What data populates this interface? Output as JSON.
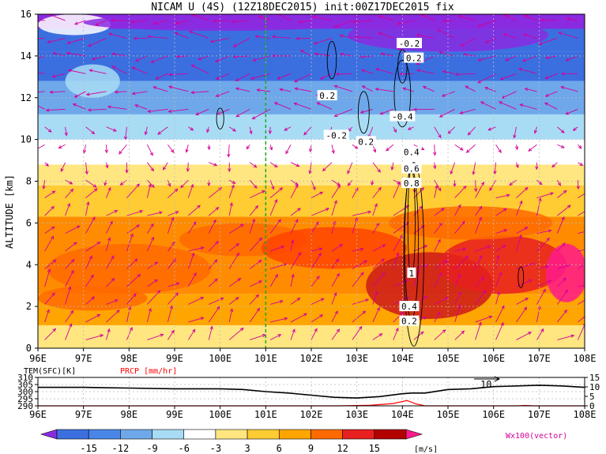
{
  "title": "NICAM U (4S) (12Z18DEC2015) init:00Z17DEC2015 fix",
  "chart_data": [
    {
      "type": "heatmap",
      "panel": "main",
      "x_ticks": [
        "96E",
        "97E",
        "98E",
        "99E",
        "100E",
        "101E",
        "102E",
        "103E",
        "104E",
        "105E",
        "106E",
        "107E",
        "108E"
      ],
      "xlim": [
        96,
        108
      ],
      "ylabel": "ALTITUDE [km]",
      "y_ticks": [
        "0",
        "2",
        "4",
        "6",
        "8",
        "10",
        "12",
        "14",
        "16"
      ],
      "ylim": [
        0,
        16
      ],
      "grid": true,
      "reference_line_lon": 101,
      "contour_labels": [
        "-0.2",
        "0.2",
        "0.2",
        "-0.2",
        "0.2",
        "-0.4",
        "0.4",
        "0.6",
        "0.8",
        "1",
        "0.4",
        "0.2"
      ],
      "contour_label_pos": [
        [
          104.15,
          14.6
        ],
        [
          104.25,
          13.9
        ],
        [
          102.35,
          12.1
        ],
        [
          102.55,
          10.2
        ],
        [
          103.2,
          9.9
        ],
        [
          104.0,
          11.1
        ],
        [
          104.2,
          9.4
        ],
        [
          104.2,
          8.6
        ],
        [
          104.2,
          7.9
        ],
        [
          104.2,
          3.6
        ],
        [
          104.15,
          2.0
        ],
        [
          104.15,
          1.3
        ]
      ],
      "bands": [
        {
          "y0": 0.0,
          "y1": 1.1,
          "color": "#ffe680"
        },
        {
          "y0": 1.1,
          "y1": 2.6,
          "color": "#ffa500"
        },
        {
          "y0": 2.6,
          "y1": 4.2,
          "color": "#ff8c00"
        },
        {
          "y0": 4.2,
          "y1": 6.3,
          "color": "#ff8c00"
        },
        {
          "y0": 6.3,
          "y1": 7.8,
          "color": "#ffcc33"
        },
        {
          "y0": 7.8,
          "y1": 8.8,
          "color": "#ffe680"
        },
        {
          "y0": 8.8,
          "y1": 10.0,
          "color": "#ffffff"
        },
        {
          "y0": 10.0,
          "y1": 11.2,
          "color": "#a8dcf5"
        },
        {
          "y0": 11.2,
          "y1": 12.8,
          "color": "#6fa8ea"
        },
        {
          "y0": 12.8,
          "y1": 14.2,
          "color": "#3b6fe0"
        },
        {
          "y0": 14.2,
          "y1": 15.3,
          "color": "#3b6fe0"
        },
        {
          "y0": 15.3,
          "y1": 16.0,
          "color": "#8a2be2"
        }
      ],
      "blobs": [
        {
          "x": 98.0,
          "y": 3.8,
          "rx": 1.8,
          "ry": 1.2,
          "color": "#ff6a00"
        },
        {
          "x": 100.5,
          "y": 5.2,
          "rx": 1.4,
          "ry": 0.8,
          "color": "#ff6a00"
        },
        {
          "x": 102.5,
          "y": 4.8,
          "rx": 1.6,
          "ry": 1.0,
          "color": "#ff4400"
        },
        {
          "x": 104.6,
          "y": 3.0,
          "rx": 1.4,
          "ry": 1.6,
          "color": "#cc1a1a"
        },
        {
          "x": 106.2,
          "y": 4.0,
          "rx": 1.4,
          "ry": 1.4,
          "color": "#e82020"
        },
        {
          "x": 107.6,
          "y": 3.6,
          "rx": 0.45,
          "ry": 1.4,
          "color": "#ff1a8c"
        },
        {
          "x": 97.2,
          "y": 2.4,
          "rx": 1.2,
          "ry": 0.6,
          "color": "#ff6a00"
        },
        {
          "x": 105.5,
          "y": 6.0,
          "rx": 1.8,
          "ry": 0.8,
          "color": "#ff6a00"
        },
        {
          "x": 96.8,
          "y": 15.5,
          "rx": 0.8,
          "ry": 0.5,
          "color": "#ffffff"
        },
        {
          "x": 97.2,
          "y": 12.8,
          "rx": 0.6,
          "ry": 0.8,
          "color": "#a8dcf5"
        },
        {
          "x": 105.0,
          "y": 15.0,
          "rx": 2.2,
          "ry": 0.8,
          "color": "#8a2be2"
        },
        {
          "x": 100.0,
          "y": 15.6,
          "rx": 3.0,
          "ry": 0.4,
          "color": "#8a2be2"
        }
      ]
    },
    {
      "type": "line",
      "panel": "surface",
      "x_ticks": [
        "96E",
        "97E",
        "98E",
        "99E",
        "100E",
        "101E",
        "102E",
        "103E",
        "104E",
        "105E",
        "106E",
        "107E",
        "108E"
      ],
      "xlim": [
        96,
        108
      ],
      "left_label": "TEM(SFC)[K]",
      "right_label": "PRCP [mm/hr]",
      "left_ticks": [
        "290",
        "295",
        "300",
        "305",
        "310"
      ],
      "left_lim": [
        290,
        310
      ],
      "right_ticks": [
        "0",
        "5",
        "10",
        "15"
      ],
      "right_lim": [
        0,
        15
      ],
      "vector_label": "10",
      "series": [
        {
          "x": [
            96,
            97,
            98,
            99,
            100,
            100.5,
            101,
            101.5,
            102,
            102.5,
            103,
            103.5,
            104,
            104.2,
            104.5,
            105,
            105.5,
            106,
            106.5,
            107,
            107.5,
            108
          ],
          "values": [
            303,
            303,
            302.5,
            302,
            302,
            301.5,
            300,
            299,
            297.5,
            296,
            295.5,
            296.5,
            298.5,
            299,
            299,
            301.5,
            302,
            303.5,
            304,
            304.5,
            304,
            303
          ]
        },
        {
          "x": [
            96,
            102.6,
            103.3,
            103.8,
            104.1,
            104.3,
            104.5,
            106.5,
            106.7,
            106.9,
            108
          ],
          "values": [
            0,
            0,
            0.3,
            1.2,
            2.8,
            1.0,
            0,
            0,
            0.2,
            0,
            0
          ]
        }
      ]
    },
    {
      "type": "colorbar",
      "panel": "legend",
      "tick_labels": [
        "-15",
        "-12",
        "-9",
        "-6",
        "-3",
        "3",
        "6",
        "9",
        "12",
        "15"
      ],
      "unit": "[m/s]",
      "colors": [
        "#8a2be2",
        "#3b6fe0",
        "#4a86e8",
        "#6fa8ea",
        "#a8dcf5",
        "#ffffff",
        "#ffe680",
        "#ffcc33",
        "#ffa500",
        "#ff6a00",
        "#e82020",
        "#b30000",
        "#ff1a8c"
      ],
      "vector_note": "Wx100(vector)"
    }
  ],
  "colors": {
    "arrow": "#d3009a",
    "grid": "#bbbbbb",
    "ref_line": "#1aaa1a",
    "temp": "#000000",
    "prcp": "#ff0000"
  }
}
